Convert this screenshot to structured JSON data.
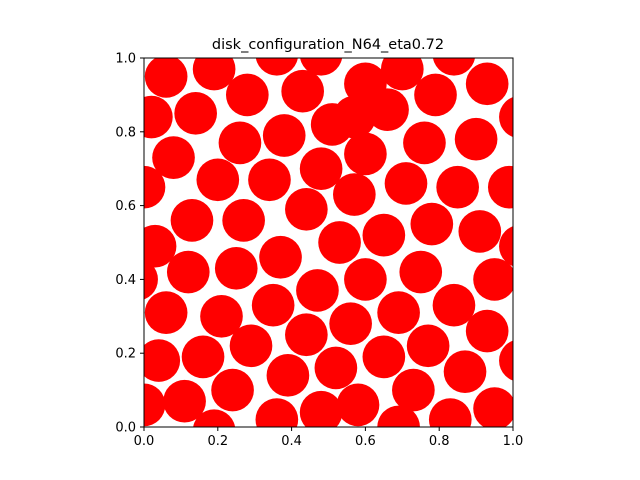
{
  "chart_data": {
    "type": "scatter",
    "title": "disk_configuration_N64_eta0.72",
    "xlabel": "",
    "ylabel": "",
    "xlim": [
      0.0,
      1.0
    ],
    "ylim": [
      0.0,
      1.0
    ],
    "x_ticks": [
      "0.0",
      "0.2",
      "0.4",
      "0.6",
      "0.8",
      "1.0"
    ],
    "y_ticks": [
      "0.0",
      "0.2",
      "0.4",
      "0.6",
      "0.8",
      "1.0"
    ],
    "grid": false,
    "disk_radius": 0.0578,
    "disk_color": "#ff0000",
    "periodic": true,
    "disks": [
      [
        0.06,
        0.95
      ],
      [
        0.19,
        0.97
      ],
      [
        0.36,
        1.01
      ],
      [
        0.48,
        1.01
      ],
      [
        0.6,
        0.93
      ],
      [
        0.7,
        0.97
      ],
      [
        0.84,
        1.01
      ],
      [
        0.02,
        0.84
      ],
      [
        0.14,
        0.85
      ],
      [
        0.28,
        0.9
      ],
      [
        0.43,
        0.91
      ],
      [
        0.57,
        0.84
      ],
      [
        0.66,
        0.86
      ],
      [
        0.79,
        0.9
      ],
      [
        0.93,
        0.93
      ],
      [
        1.02,
        0.84
      ],
      [
        0.08,
        0.73
      ],
      [
        0.26,
        0.77
      ],
      [
        0.38,
        0.79
      ],
      [
        0.51,
        0.82
      ],
      [
        0.6,
        0.74
      ],
      [
        0.76,
        0.77
      ],
      [
        0.9,
        0.78
      ],
      [
        0.0,
        0.65
      ],
      [
        0.2,
        0.67
      ],
      [
        0.34,
        0.67
      ],
      [
        0.48,
        0.7
      ],
      [
        0.57,
        0.63
      ],
      [
        0.71,
        0.66
      ],
      [
        0.85,
        0.65
      ],
      [
        0.99,
        0.65
      ],
      [
        0.13,
        0.56
      ],
      [
        0.27,
        0.56
      ],
      [
        0.44,
        0.59
      ],
      [
        0.78,
        0.55
      ],
      [
        0.03,
        0.49
      ],
      [
        0.37,
        0.46
      ],
      [
        0.53,
        0.5
      ],
      [
        0.65,
        0.52
      ],
      [
        0.91,
        0.53
      ],
      [
        1.02,
        0.49
      ],
      [
        0.12,
        0.42
      ],
      [
        0.25,
        0.43
      ],
      [
        0.6,
        0.4
      ],
      [
        0.75,
        0.42
      ],
      [
        0.95,
        0.4
      ],
      [
        -0.02,
        0.4
      ],
      [
        0.06,
        0.31
      ],
      [
        0.21,
        0.3
      ],
      [
        0.35,
        0.33
      ],
      [
        0.47,
        0.37
      ],
      [
        0.56,
        0.28
      ],
      [
        0.69,
        0.31
      ],
      [
        0.84,
        0.33
      ],
      [
        0.04,
        0.18
      ],
      [
        0.16,
        0.19
      ],
      [
        0.29,
        0.22
      ],
      [
        0.44,
        0.25
      ],
      [
        0.52,
        0.16
      ],
      [
        0.65,
        0.19
      ],
      [
        0.77,
        0.22
      ],
      [
        0.93,
        0.26
      ],
      [
        0.11,
        0.07
      ],
      [
        0.24,
        0.1
      ],
      [
        0.39,
        0.14
      ],
      [
        0.58,
        0.06
      ],
      [
        0.73,
        0.1
      ],
      [
        0.87,
        0.15
      ],
      [
        1.02,
        0.18
      ],
      [
        0.0,
        0.06
      ],
      [
        0.36,
        0.02
      ],
      [
        0.48,
        0.04
      ],
      [
        0.69,
        0.0
      ],
      [
        0.83,
        0.02
      ],
      [
        0.95,
        0.05
      ],
      [
        0.19,
        -0.01
      ]
    ]
  }
}
